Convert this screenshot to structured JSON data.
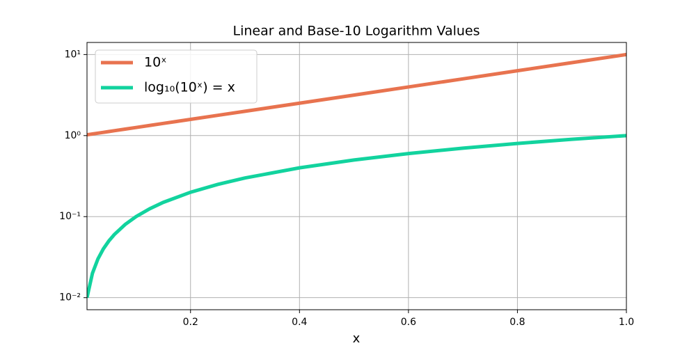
{
  "chart_data": {
    "type": "line",
    "title": "Linear and Base-10 Logarithm Values",
    "x_label": "x",
    "yscale": "log",
    "grid": true,
    "legend_position": "upper left",
    "x": [
      0.01,
      0.02,
      0.03,
      0.04,
      0.05,
      0.06,
      0.08,
      0.1,
      0.125,
      0.15,
      0.2,
      0.25,
      0.3,
      0.4,
      0.5,
      0.6,
      0.7,
      0.8,
      0.9,
      1.0
    ],
    "series": [
      {
        "name": "10ˣ",
        "color": "#e8734f",
        "values": [
          1.023,
          1.047,
          1.072,
          1.096,
          1.122,
          1.148,
          1.202,
          1.259,
          1.334,
          1.413,
          1.585,
          1.778,
          1.995,
          2.512,
          3.162,
          3.981,
          5.012,
          6.31,
          7.943,
          10
        ]
      },
      {
        "name": "log₁₀(10ˣ) = x",
        "color": "#12d39e",
        "values": [
          0.01,
          0.02,
          0.03,
          0.04,
          0.05,
          0.06,
          0.08,
          0.1,
          0.125,
          0.15,
          0.2,
          0.25,
          0.3,
          0.4,
          0.5,
          0.6,
          0.7,
          0.8,
          0.9,
          1.0
        ]
      }
    ],
    "xlim": [
      0.01,
      1.0
    ],
    "xticks": [
      0.2,
      0.4,
      0.6,
      0.8,
      {
        "value": 1,
        "label": "1.0"
      }
    ],
    "ylim": [
      0.0071,
      14.1
    ],
    "yticks": [
      {
        "value": 0.01,
        "label": "10⁻²"
      },
      {
        "value": 0.1,
        "label": "10⁻¹"
      },
      {
        "value": 1,
        "label": "10⁰"
      },
      {
        "value": 10,
        "label": "10¹"
      }
    ]
  }
}
